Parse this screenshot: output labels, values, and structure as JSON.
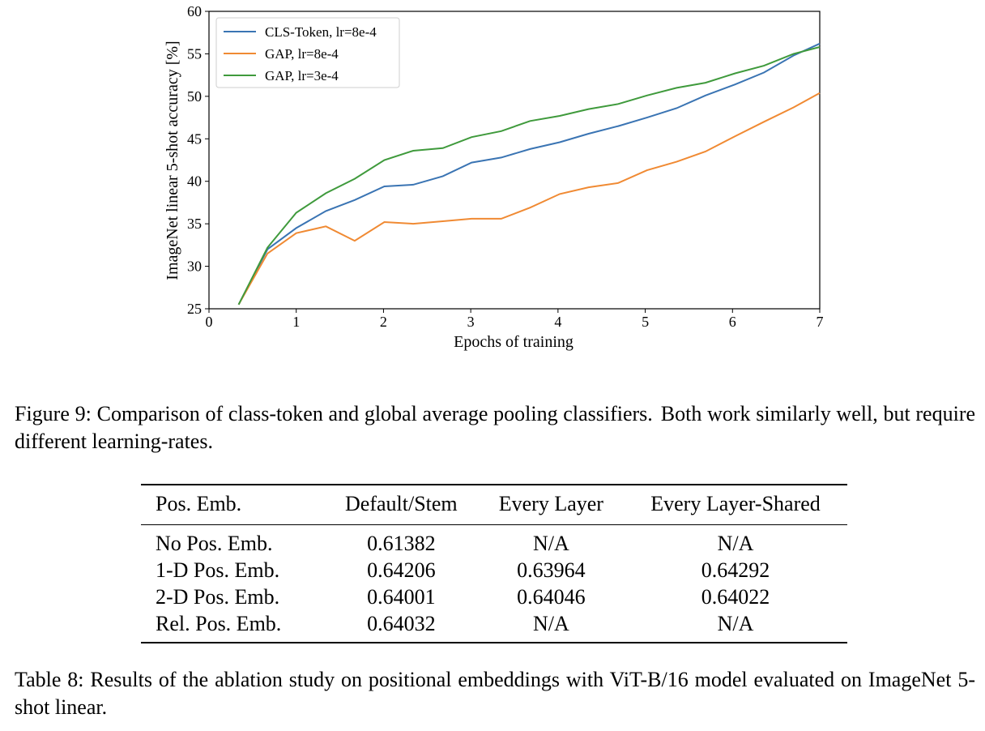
{
  "figure": {
    "caption_label": "Figure 9:",
    "caption_text": "Comparison of class-token and global average pooling classifiers.",
    "caption_text_2": "Both work similarly well, but require different learning-rates."
  },
  "chart_data": {
    "type": "line",
    "xlabel": "Epochs of training",
    "ylabel": "ImageNet linear 5-shot accuracy [%]",
    "xlim": [
      0,
      7
    ],
    "ylim": [
      25,
      60
    ],
    "xticks": [
      0,
      1,
      2,
      3,
      4,
      5,
      6,
      7
    ],
    "yticks": [
      25,
      30,
      35,
      40,
      45,
      50,
      55,
      60
    ],
    "grid": false,
    "legend_position": "top-left",
    "x": [
      0.34,
      0.67,
      1.0,
      1.34,
      1.67,
      2.01,
      2.34,
      2.68,
      3.01,
      3.35,
      3.68,
      4.02,
      4.35,
      4.69,
      5.02,
      5.36,
      5.69,
      6.03,
      6.36,
      6.7,
      7.0
    ],
    "series": [
      {
        "name": "CLS-Token, lr=8e-4",
        "color": "#3a74b3",
        "values": [
          25.5,
          32.0,
          34.5,
          36.5,
          37.8,
          39.4,
          39.6,
          40.6,
          42.2,
          42.8,
          43.8,
          44.6,
          45.6,
          46.5,
          47.5,
          48.6,
          50.1,
          51.4,
          52.8,
          54.8,
          56.2
        ]
      },
      {
        "name": "GAP, lr=8e-4",
        "color": "#f08a33",
        "values": [
          25.5,
          31.5,
          33.9,
          34.7,
          33.0,
          35.2,
          35.0,
          35.3,
          35.6,
          35.6,
          36.9,
          38.5,
          39.3,
          39.8,
          41.3,
          42.3,
          43.5,
          45.3,
          47.0,
          48.7,
          50.4
        ]
      },
      {
        "name": "GAP, lr=3e-4",
        "color": "#3f9a3c",
        "values": [
          25.5,
          32.2,
          36.3,
          38.6,
          40.3,
          42.5,
          43.6,
          43.9,
          45.2,
          45.9,
          47.1,
          47.7,
          48.5,
          49.1,
          50.1,
          51.0,
          51.6,
          52.7,
          53.6,
          55.0,
          55.8
        ]
      }
    ]
  },
  "table": {
    "headers": [
      "Pos. Emb.",
      "Default/Stem",
      "Every Layer",
      "Every Layer-Shared"
    ],
    "rows": [
      [
        "No Pos. Emb.",
        "0.61382",
        "N/A",
        "N/A"
      ],
      [
        "1-D Pos. Emb.",
        "0.64206",
        "0.63964",
        "0.64292"
      ],
      [
        "2-D Pos. Emb.",
        "0.64001",
        "0.64046",
        "0.64022"
      ],
      [
        "Rel. Pos. Emb.",
        "0.64032",
        "N/A",
        "N/A"
      ]
    ],
    "caption": "Table 8: Results of the ablation study on positional embeddings with ViT-B/16 model evaluated on ImageNet 5-shot linear."
  }
}
